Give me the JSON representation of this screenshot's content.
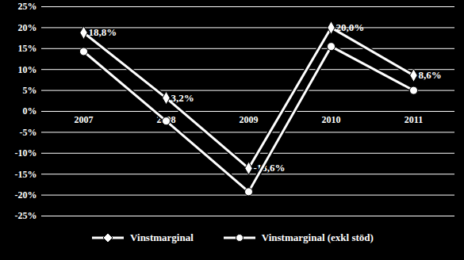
{
  "chart_data": {
    "type": "line",
    "categories": [
      "2007",
      "2008",
      "2009",
      "2010",
      "2011"
    ],
    "series": [
      {
        "name": "Vinstmarginal",
        "color": "#ffffff",
        "marker": "diamond",
        "line_style": "solid",
        "values": [
          18.8,
          3.2,
          -13.6,
          20.0,
          8.6
        ],
        "data_labels": true,
        "value_labels": [
          "18,8%",
          "3,2%",
          "-13,6%",
          "20,0%",
          "8,6%"
        ]
      },
      {
        "name": "Vinstmarginal (exkl stöd)",
        "color": "#ffffff",
        "marker": "circle",
        "line_style": "solid",
        "values": [
          14.3,
          -2.3,
          -19.2,
          15.5,
          5.0
        ],
        "data_labels": false
      }
    ],
    "ylim": [
      -25,
      25
    ],
    "yticks": [
      {
        "value": -25,
        "label": "-25%"
      },
      {
        "value": -20,
        "label": "-20%"
      },
      {
        "value": -15,
        "label": "-15%"
      },
      {
        "value": -10,
        "label": "-10%"
      },
      {
        "value": -5,
        "label": "-5%"
      },
      {
        "value": 0,
        "label": "0%"
      },
      {
        "value": 5,
        "label": "5%"
      },
      {
        "value": 10,
        "label": "10%"
      },
      {
        "value": 15,
        "label": "15%"
      },
      {
        "value": 20,
        "label": "20%"
      },
      {
        "value": 25,
        "label": "25%"
      }
    ],
    "grid": true,
    "legend": "bottom"
  }
}
